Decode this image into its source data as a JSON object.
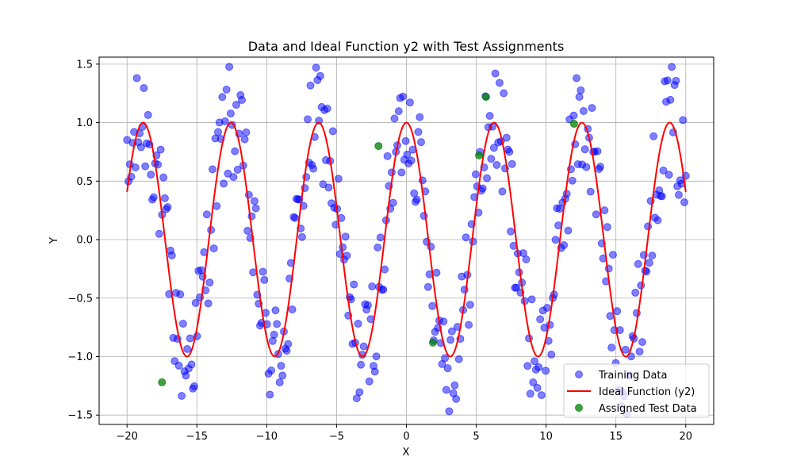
{
  "chart_data": {
    "type": "scatter",
    "title": "Data and Ideal Function y2 with Test Assignments",
    "xlabel": "X",
    "ylabel": "Y",
    "xlim": [
      -22,
      22
    ],
    "ylim": [
      -1.58,
      1.56
    ],
    "xticks": [
      -20,
      -15,
      -10,
      -5,
      0,
      5,
      10,
      15,
      20
    ],
    "xtick_labels": [
      "−20",
      "−15",
      "−10",
      "−5",
      "0",
      "5",
      "10",
      "15",
      "20"
    ],
    "yticks": [
      -1.5,
      -1.0,
      -0.5,
      0.0,
      0.5,
      1.0,
      1.5
    ],
    "ytick_labels": [
      "−1.5",
      "−1.0",
      "−0.5",
      "0.0",
      "0.5",
      "1.0",
      "1.5"
    ],
    "grid": true,
    "legend_position": "lower-right",
    "series": [
      {
        "name": "Training Data",
        "kind": "scatter",
        "color": "#0000ff",
        "alpha": 0.5,
        "x_range": [
          -20,
          20
        ],
        "point_count": 400,
        "model": "cos(x) + uniform noise in [-0.5, 0.5]"
      },
      {
        "name": "Ideal Function (y2)",
        "kind": "line",
        "color": "#ff0000",
        "function": "cos(x)",
        "x_range": [
          -20,
          20
        ]
      },
      {
        "name": "Assigned Test Data",
        "kind": "scatter",
        "color": "#008000",
        "alpha": 0.75,
        "x": [
          -17.5,
          -2.0,
          1.9,
          5.2,
          5.7,
          12.0
        ],
        "y": [
          -1.22,
          0.8,
          -0.88,
          0.72,
          1.22,
          0.99
        ]
      }
    ]
  }
}
